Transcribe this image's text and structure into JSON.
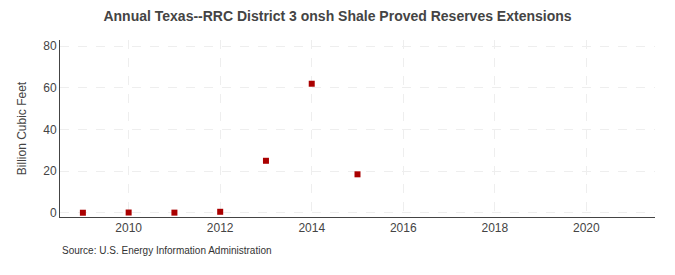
{
  "chart_data": {
    "type": "scatter",
    "title": "Annual Texas--RRC District 3 onsh Shale Proved Reserves Extensions",
    "ylabel": "Billion Cubic Feet",
    "annotations": [
      "Source: U.S. Energy Information Administration"
    ],
    "x": [
      2009,
      2010,
      2011,
      2012,
      2013,
      2014,
      2015
    ],
    "values": [
      0.05,
      0.15,
      0.1,
      0.5,
      25.0,
      62.0,
      18.5
    ],
    "color": "#aa0000",
    "marker": "square",
    "xlim": [
      2008.5,
      2021.5
    ],
    "ylim": [
      -2,
      83
    ],
    "xticks": [
      2010,
      2012,
      2014,
      2016,
      2018,
      2020
    ],
    "yticks": [
      0,
      20,
      40,
      60,
      80
    ],
    "grid": true
  }
}
